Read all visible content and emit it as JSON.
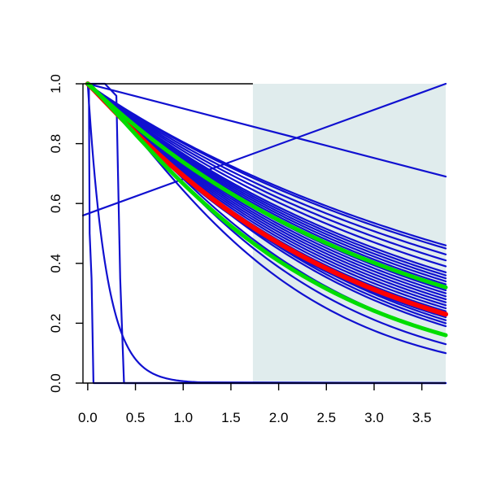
{
  "chart_data": {
    "type": "line",
    "title": "",
    "xlabel": "",
    "ylabel": "",
    "xlim": [
      -0.05,
      3.75
    ],
    "ylim": [
      0.0,
      1.0
    ],
    "x_ticks": [
      0.0,
      0.5,
      1.0,
      1.5,
      2.0,
      2.5,
      3.0,
      3.5
    ],
    "x_tick_labels": [
      "0.0",
      "0.5",
      "1.0",
      "1.5",
      "2.0",
      "2.5",
      "3.0",
      "3.5"
    ],
    "y_ticks": [
      0.0,
      0.2,
      0.4,
      0.6,
      0.8,
      1.0
    ],
    "y_tick_labels": [
      "0.0",
      "0.2",
      "0.4",
      "0.6",
      "0.8",
      "1.0"
    ],
    "grid": false,
    "legend": "none",
    "shaded_region": {
      "x_from": 1.73,
      "x_to": 3.75,
      "color": "#e0eced"
    },
    "colors": {
      "sample": "#1010d0",
      "estimate": "#ff0000",
      "interval": "#00dd00"
    },
    "highlight_series": [
      {
        "role": "estimate",
        "color": "#ff0000",
        "x": [
          0,
          3.75
        ],
        "y": [
          1.0,
          0.23
        ]
      },
      {
        "role": "interval-upper",
        "color": "#00dd00",
        "x": [
          0,
          3.75
        ],
        "y": [
          1.0,
          0.32
        ]
      },
      {
        "role": "interval-lower",
        "color": "#00dd00",
        "x": [
          0,
          3.75
        ],
        "y": [
          1.0,
          0.16
        ]
      }
    ],
    "sample_series_end_values": [
      0.1,
      0.13,
      0.16,
      0.19,
      0.2,
      0.21,
      0.22,
      0.24,
      0.25,
      0.26,
      0.27,
      0.28,
      0.29,
      0.3,
      0.31,
      0.32,
      0.33,
      0.34,
      0.35,
      0.36,
      0.37,
      0.39,
      0.41,
      0.43,
      0.45,
      0.46
    ],
    "special_series": [
      {
        "shape": "line",
        "x": [
          -0.05,
          3.75
        ],
        "y": [
          0.56,
          1.0
        ]
      },
      {
        "shape": "line",
        "x": [
          0,
          3.75
        ],
        "y": [
          1.0,
          0.69
        ]
      },
      {
        "shape": "decay",
        "x": [
          0,
          0.5,
          1.0,
          1.2
        ],
        "y": [
          1.0,
          0.08,
          0.003,
          0.0
        ]
      },
      {
        "shape": "step",
        "x": [
          0,
          0.3,
          0.38,
          3.75
        ],
        "y": [
          1.0,
          0.96,
          0.0,
          0.0
        ]
      },
      {
        "shape": "step",
        "x": [
          0,
          0.02,
          0.06,
          3.75
        ],
        "y": [
          1.0,
          0.5,
          0.0,
          0.0
        ]
      }
    ]
  }
}
